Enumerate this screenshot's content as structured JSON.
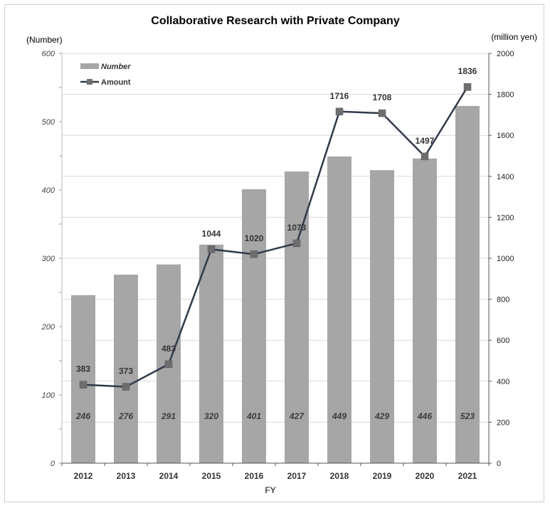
{
  "chart_data": {
    "type": "bar",
    "title": "Collaborative Research with  Private Company",
    "xlabel": "FY",
    "ylabel_left": "(Number)",
    "ylabel_right": "(million yen)",
    "categories": [
      "2012",
      "2013",
      "2014",
      "2015",
      "2016",
      "2017",
      "2018",
      "2019",
      "2020",
      "2021"
    ],
    "ylim_left": [
      0,
      600
    ],
    "ylim_right": [
      0,
      2000
    ],
    "yticks_left": [
      0,
      100,
      200,
      300,
      400,
      500,
      600
    ],
    "yticks_right": [
      0,
      200,
      400,
      600,
      800,
      1000,
      1200,
      1400,
      1600,
      1800,
      2000
    ],
    "grid": true,
    "legend_position": "top-left",
    "series": [
      {
        "name": "Number",
        "type": "bar",
        "axis": "left",
        "color": "#a6a6a6",
        "values": [
          246,
          276,
          291,
          320,
          401,
          427,
          449,
          429,
          446,
          523
        ]
      },
      {
        "name": "Amount",
        "type": "line",
        "axis": "right",
        "color": "#2f3a4a",
        "marker_color": "#6e6e6e",
        "values": [
          383,
          373,
          483,
          1044,
          1020,
          1073,
          1716,
          1708,
          1497,
          1836
        ]
      }
    ]
  }
}
